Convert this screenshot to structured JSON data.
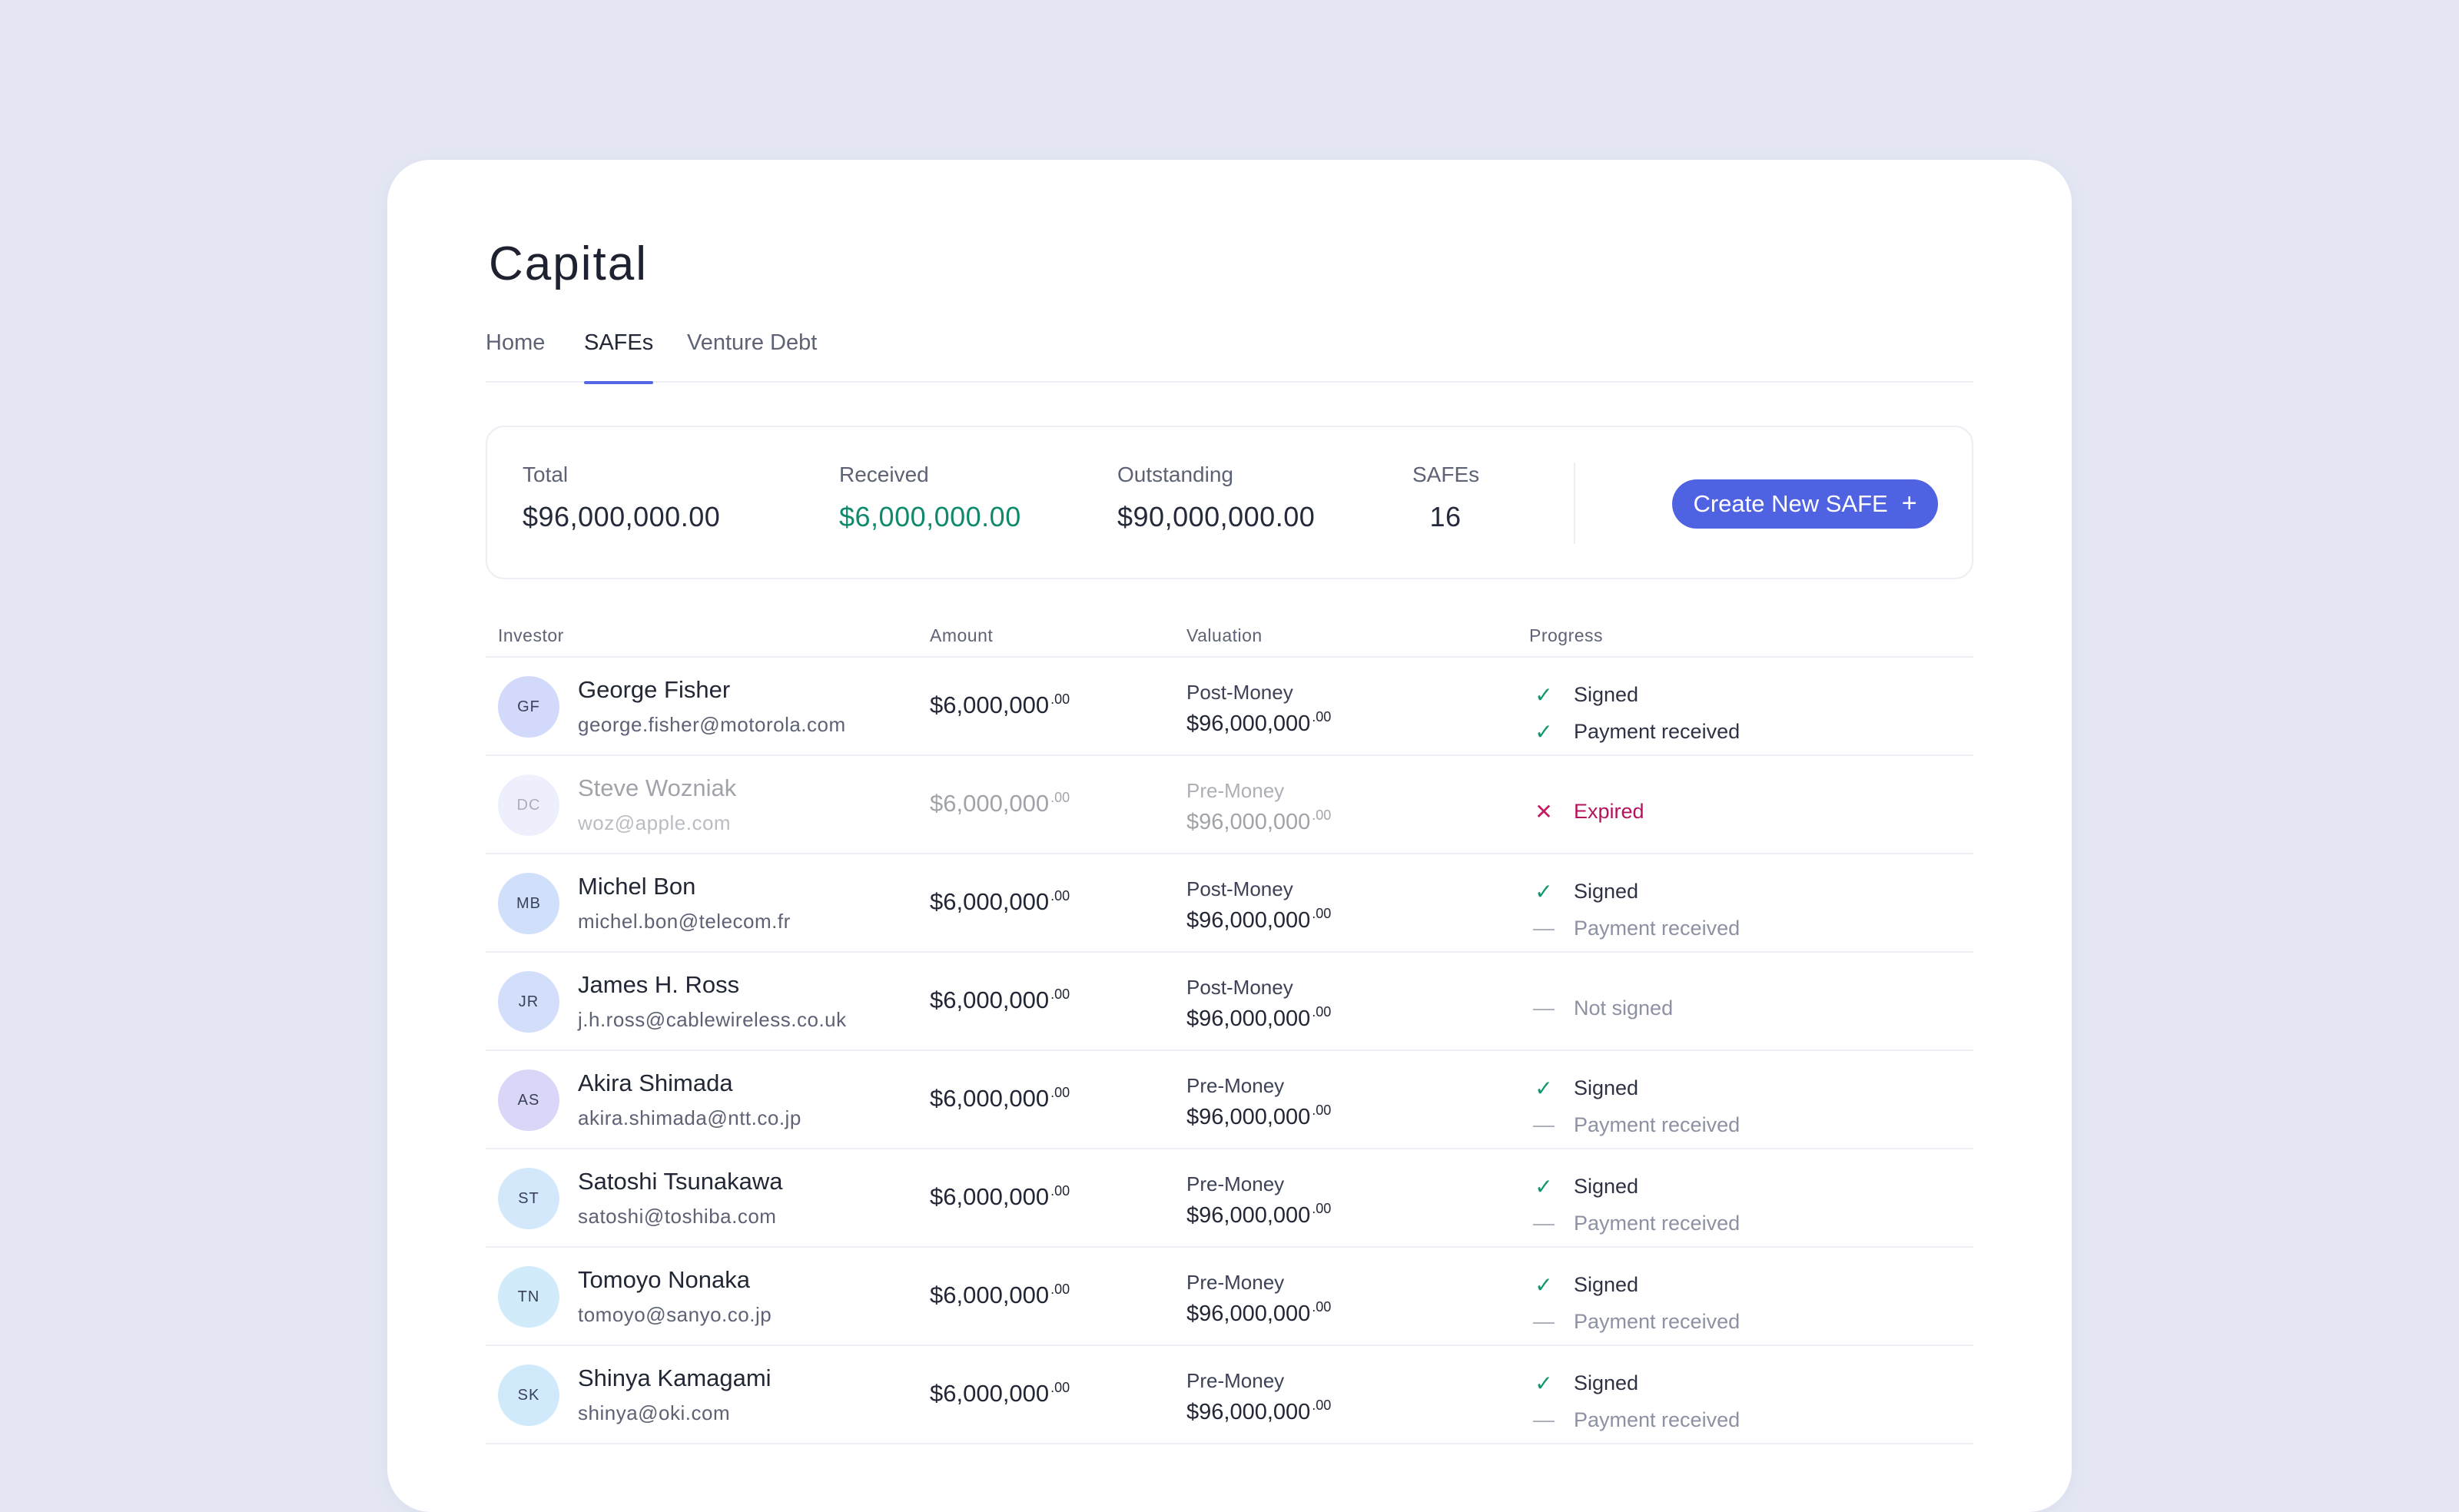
{
  "page_title": "Capital",
  "tabs": [
    {
      "label": "Home",
      "active": false
    },
    {
      "label": "SAFEs",
      "active": true
    },
    {
      "label": "Venture Debt",
      "active": false
    }
  ],
  "summary": {
    "total_label": "Total",
    "total_value": "$96,000,000.00",
    "received_label": "Received",
    "received_value": "$6,000,000.00",
    "outstanding_label": "Outstanding",
    "outstanding_value": "$90,000,000.00",
    "safes_label": "SAFEs",
    "safes_value": "16",
    "create_button_label": "Create New SAFE",
    "create_button_icon": "+"
  },
  "table": {
    "headers": {
      "investor": "Investor",
      "amount": "Amount",
      "valuation": "Valuation",
      "progress": "Progress"
    },
    "rows": [
      {
        "initials": "GF",
        "avatar_color": "#d2d9fb",
        "name": "George Fisher",
        "email": "george.fisher@motorola.com",
        "amount": "$6,000,000",
        "amount_cents": ".00",
        "valuation_type": "Post-Money",
        "valuation": "$96,000,000",
        "valuation_cents": ".00",
        "expired": false,
        "progress": [
          {
            "icon": "check-icon",
            "text": "Signed",
            "state": "done"
          },
          {
            "icon": "check-icon",
            "text": "Payment received",
            "state": "done"
          }
        ]
      },
      {
        "initials": "DC",
        "avatar_color": "#d6dcf8",
        "name": "Steve Wozniak",
        "email": "woz@apple.com",
        "amount": "$6,000,000",
        "amount_cents": ".00",
        "valuation_type": "Pre-Money",
        "valuation": "$96,000,000",
        "valuation_cents": ".00",
        "expired": true,
        "progress": [
          {
            "icon": "x-icon",
            "text": "Expired",
            "state": "expired"
          }
        ]
      },
      {
        "initials": "MB",
        "avatar_color": "#d1e0fa",
        "name": "Michel Bon",
        "email": "michel.bon@telecom.fr",
        "amount": "$6,000,000",
        "amount_cents": ".00",
        "valuation_type": "Post-Money",
        "valuation": "$96,000,000",
        "valuation_cents": ".00",
        "expired": false,
        "progress": [
          {
            "icon": "check-icon",
            "text": "Signed",
            "state": "done"
          },
          {
            "icon": "dash-icon",
            "text": "Payment received",
            "state": "pending"
          }
        ]
      },
      {
        "initials": "JR",
        "avatar_color": "#d3defb",
        "name": "James H. Ross",
        "email": "j.h.ross@cablewireless.co.uk",
        "amount": "$6,000,000",
        "amount_cents": ".00",
        "valuation_type": "Post-Money",
        "valuation": "$96,000,000",
        "valuation_cents": ".00",
        "expired": false,
        "progress": [
          {
            "icon": "dash-icon",
            "text": "Not signed",
            "state": "pending"
          }
        ]
      },
      {
        "initials": "AS",
        "avatar_color": "#dad6f8",
        "name": "Akira Shimada",
        "email": "akira.shimada@ntt.co.jp",
        "amount": "$6,000,000",
        "amount_cents": ".00",
        "valuation_type": "Pre-Money",
        "valuation": "$96,000,000",
        "valuation_cents": ".00",
        "expired": false,
        "progress": [
          {
            "icon": "check-icon",
            "text": "Signed",
            "state": "done"
          },
          {
            "icon": "dash-icon",
            "text": "Payment received",
            "state": "pending"
          }
        ]
      },
      {
        "initials": "ST",
        "avatar_color": "#d3e9fb",
        "name": "Satoshi Tsunakawa",
        "email": "satoshi@toshiba.com",
        "amount": "$6,000,000",
        "amount_cents": ".00",
        "valuation_type": "Pre-Money",
        "valuation": "$96,000,000",
        "valuation_cents": ".00",
        "expired": false,
        "progress": [
          {
            "icon": "check-icon",
            "text": "Signed",
            "state": "done"
          },
          {
            "icon": "dash-icon",
            "text": "Payment received",
            "state": "pending"
          }
        ]
      },
      {
        "initials": "TN",
        "avatar_color": "#d2ebfa",
        "name": "Tomoyo Nonaka",
        "email": "tomoyo@sanyo.co.jp",
        "amount": "$6,000,000",
        "amount_cents": ".00",
        "valuation_type": "Pre-Money",
        "valuation": "$96,000,000",
        "valuation_cents": ".00",
        "expired": false,
        "progress": [
          {
            "icon": "check-icon",
            "text": "Signed",
            "state": "done"
          },
          {
            "icon": "dash-icon",
            "text": "Payment received",
            "state": "pending"
          }
        ]
      },
      {
        "initials": "SK",
        "avatar_color": "#d1eafb",
        "name": "Shinya Kamagami",
        "email": "shinya@oki.com",
        "amount": "$6,000,000",
        "amount_cents": ".00",
        "valuation_type": "Pre-Money",
        "valuation": "$96,000,000",
        "valuation_cents": ".00",
        "expired": false,
        "progress": [
          {
            "icon": "check-icon",
            "text": "Signed",
            "state": "done"
          },
          {
            "icon": "dash-icon",
            "text": "Payment received",
            "state": "pending"
          }
        ]
      }
    ]
  }
}
